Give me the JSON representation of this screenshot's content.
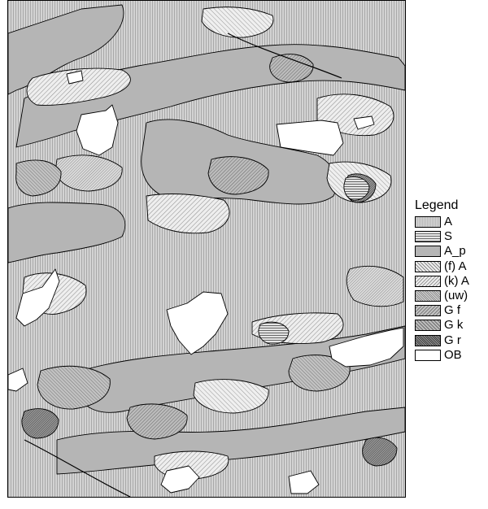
{
  "legend": {
    "title": "Legend",
    "items": [
      {
        "label": "A",
        "pattern": "vertical-fine-lines",
        "color": "#c8c8c8"
      },
      {
        "label": "S",
        "pattern": "horizontal-lines",
        "color": "#d2d2d2"
      },
      {
        "label": "A_p",
        "pattern": "solid-gray",
        "color": "#b5b5b5"
      },
      {
        "label": "(f) A",
        "pattern": "diagonal-lines-light",
        "color": "#e2e2e2"
      },
      {
        "label": "(k) A",
        "pattern": "back-diagonal-lines-light",
        "color": "#e6e6e6"
      },
      {
        "label": "(uw)",
        "pattern": "dense-diagonal-lines",
        "color": "#c0c0c0"
      },
      {
        "label": "G f",
        "pattern": "back-diagonal-lines-medium",
        "color": "#acacac"
      },
      {
        "label": "G k",
        "pattern": "diagonal-lines-medium",
        "color": "#a0a0a0"
      },
      {
        "label": "G r",
        "pattern": "diagonal-lines-dark",
        "color": "#7a7a7a"
      },
      {
        "label": "OB",
        "pattern": "solid-white",
        "color": "#ffffff"
      }
    ]
  }
}
